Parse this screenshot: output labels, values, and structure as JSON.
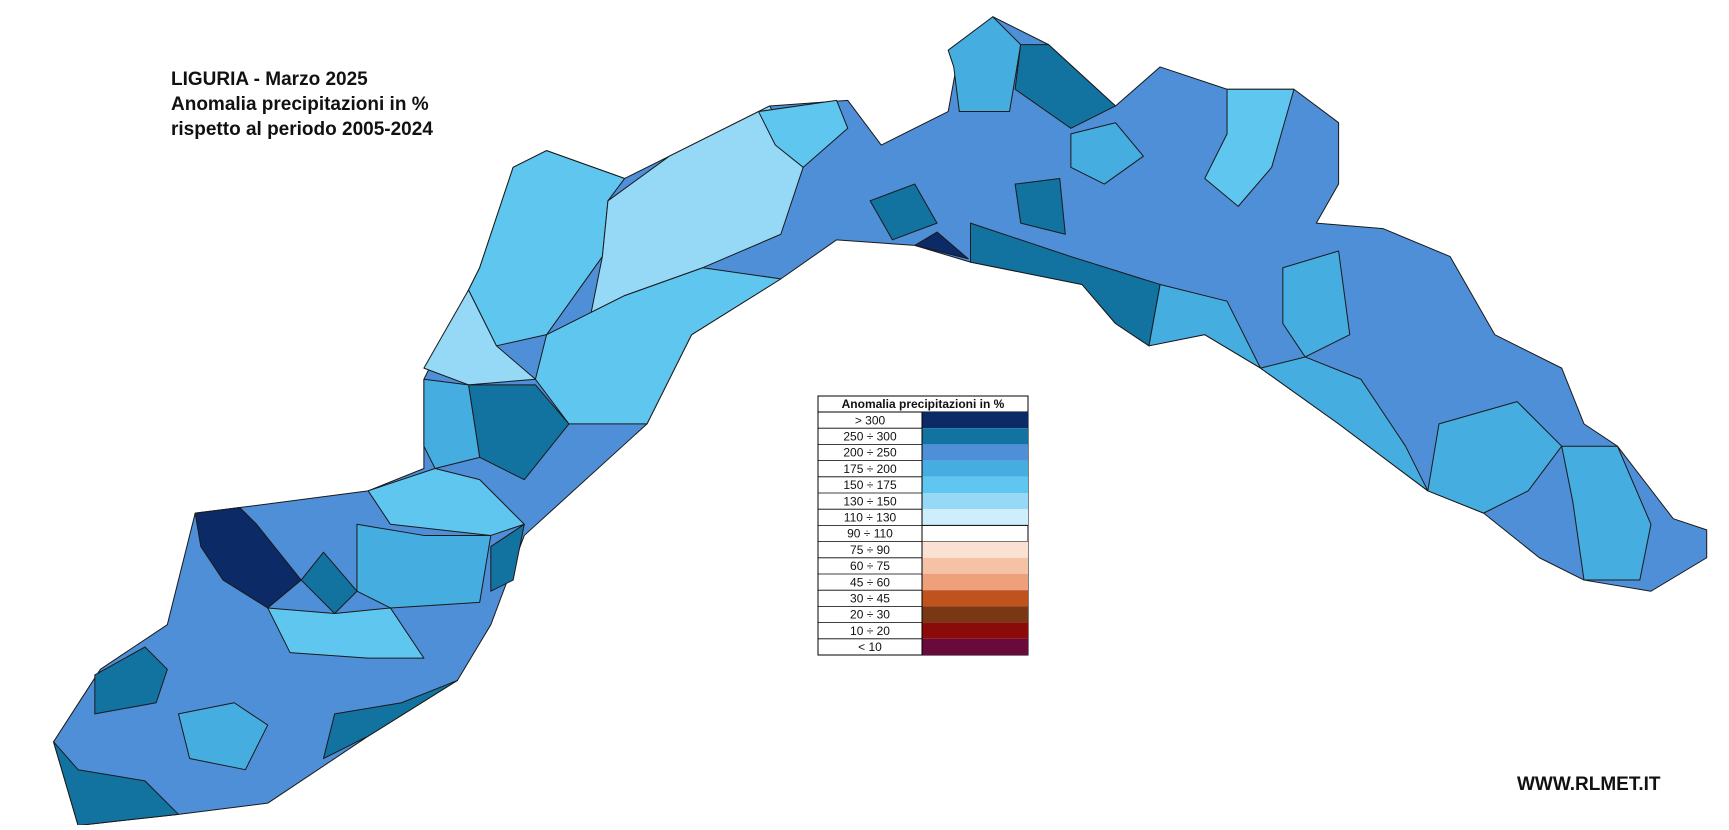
{
  "title_lines": [
    "LIGURIA - Marzo 2025",
    "Anomalia precipitazioni in %",
    "rispetto al periodo 2005-2024"
  ],
  "legend": {
    "title": "Anomalia precipitazioni in %",
    "entries": [
      {
        "label": "> 300",
        "color": "#0b2a66"
      },
      {
        "label": "250 ÷ 300",
        "color": "#1273a0"
      },
      {
        "label": "200 ÷ 250",
        "color": "#4f8fd8"
      },
      {
        "label": "175 ÷ 200",
        "color": "#45ade0"
      },
      {
        "label": "150 ÷ 175",
        "color": "#5fc6f0"
      },
      {
        "label": "130 ÷ 150",
        "color": "#95d9f6"
      },
      {
        "label": "110 ÷ 130",
        "color": "#cdeefa"
      },
      {
        "label": "90 ÷ 110",
        "color": "#ffffff"
      },
      {
        "label": "75 ÷ 90",
        "color": "#fbe0d4"
      },
      {
        "label": "60 ÷ 75",
        "color": "#f6c2a6"
      },
      {
        "label": "45 ÷ 60",
        "color": "#eda07a"
      },
      {
        "label": "30 ÷ 45",
        "color": "#c0521e"
      },
      {
        "label": "20 ÷ 30",
        "color": "#7a3713"
      },
      {
        "label": "10 ÷ 20",
        "color": "#8b0a0a"
      },
      {
        "label": "< 10",
        "color": "#6a0a3a"
      }
    ]
  },
  "watermark": "WWW.RLMET.IT"
}
